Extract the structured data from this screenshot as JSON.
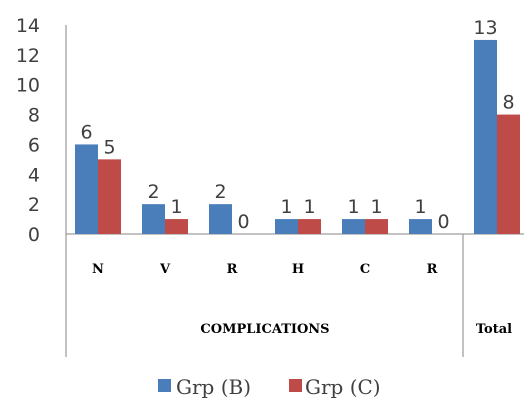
{
  "chart_data": {
    "type": "bar",
    "categories": [
      "N",
      "V",
      "R",
      "H",
      "C",
      "R",
      "Total"
    ],
    "groups": [
      {
        "label": "COMPLICATIONS",
        "categories": [
          "N",
          "V",
          "R",
          "H",
          "C",
          "R"
        ]
      },
      {
        "label": "Total",
        "categories": [
          "Total"
        ]
      }
    ],
    "series": [
      {
        "name": "Grp (B)",
        "color": "#4a7ebb",
        "values": [
          6,
          2,
          2,
          1,
          1,
          1,
          13
        ]
      },
      {
        "name": "Grp (C)",
        "color": "#be4b48",
        "values": [
          5,
          1,
          0,
          1,
          1,
          0,
          8
        ]
      }
    ],
    "ylim": [
      0,
      14
    ],
    "yticks": [
      0,
      2,
      4,
      6,
      8,
      10,
      12,
      14
    ],
    "data_labels": true,
    "grid": false,
    "legend": "bottom",
    "title": "",
    "xlabel": "",
    "ylabel": ""
  }
}
